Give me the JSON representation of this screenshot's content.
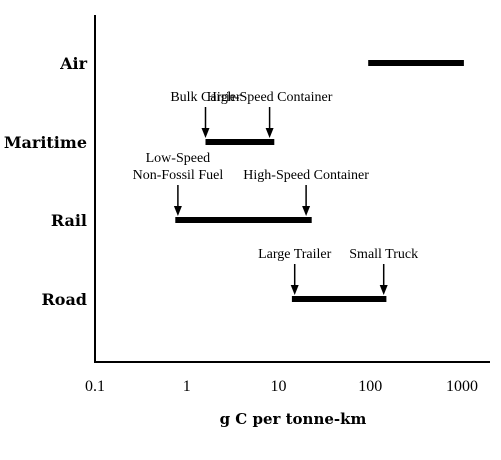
{
  "chart_data": {
    "type": "range",
    "title": "",
    "xlabel": "g C per tonne-km",
    "ylabel": "",
    "xscale": "log",
    "xlim": [
      0.1,
      1000
    ],
    "xticks": [
      {
        "value": 0.1,
        "label": "0.1"
      },
      {
        "value": 1,
        "label": "1"
      },
      {
        "value": 10,
        "label": "10"
      },
      {
        "value": 100,
        "label": "100"
      },
      {
        "value": 1000,
        "label": "1000"
      }
    ],
    "grid": false,
    "categories": [
      "Air",
      "Maritime",
      "Rail",
      "Road"
    ],
    "ranges": [
      {
        "category": "Air",
        "min": 95,
        "max": 1050
      },
      {
        "category": "Maritime",
        "min": 1.6,
        "max": 9
      },
      {
        "category": "Rail",
        "min": 0.75,
        "max": 23
      },
      {
        "category": "Road",
        "min": 14,
        "max": 150
      }
    ],
    "annotations": [
      {
        "category": "Maritime",
        "value": 1.6,
        "lines": [
          "Bulk Carrier"
        ]
      },
      {
        "category": "Maritime",
        "value": 8,
        "lines": [
          "High-Speed Container"
        ]
      },
      {
        "category": "Rail",
        "value": 0.8,
        "lines": [
          "Low-Speed",
          "Non-Fossil Fuel"
        ]
      },
      {
        "category": "Rail",
        "value": 20,
        "lines": [
          "High-Speed Container"
        ]
      },
      {
        "category": "Road",
        "value": 15,
        "lines": [
          "Large Trailer"
        ]
      },
      {
        "category": "Road",
        "value": 140,
        "lines": [
          "Small Truck"
        ]
      }
    ]
  }
}
